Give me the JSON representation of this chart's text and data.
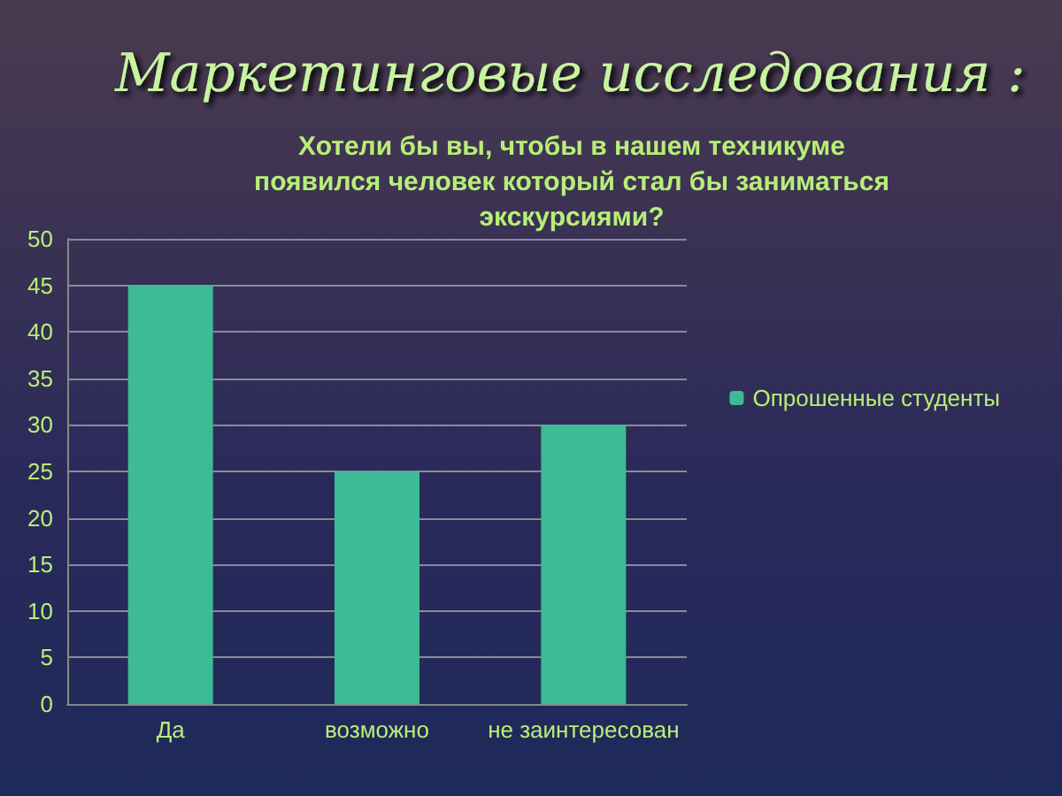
{
  "chart_data": {
    "type": "bar",
    "title": "Маркетинговые исследования :",
    "subtitle": "Хотели бы вы, чтобы в нашем техникуме появился человек который стал бы заниматься экскурсиями?",
    "categories": [
      "Да",
      "возможно",
      "не заинтересован"
    ],
    "series": [
      {
        "name": "Опрошенные студенты",
        "color": "#3dbb94",
        "values": [
          45,
          25,
          30
        ]
      }
    ],
    "ylim": [
      0,
      50
    ],
    "yticks": [
      0,
      5,
      10,
      15,
      20,
      25,
      30,
      35,
      40,
      45,
      50
    ],
    "grid": "y",
    "legend": "right"
  }
}
